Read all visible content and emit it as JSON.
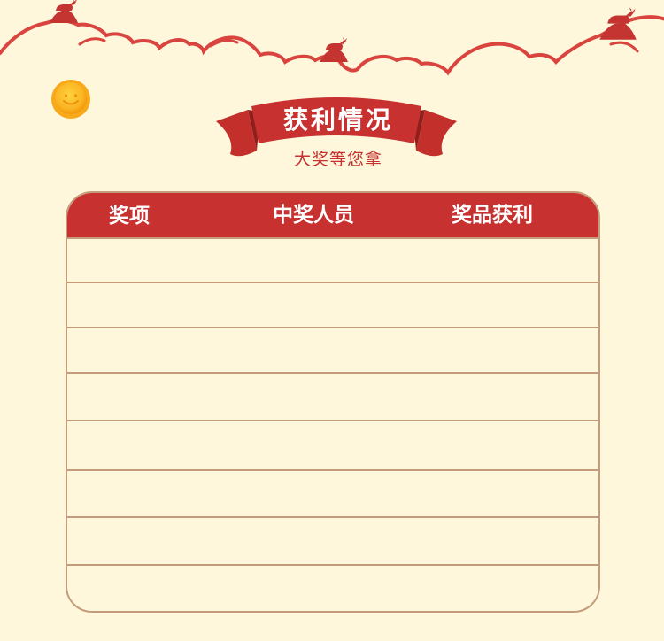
{
  "colors": {
    "background": "#fef7dc",
    "accent_red": "#c7312f",
    "cloud_red": "#d9443e",
    "coin_gold": "#f7a81b",
    "line_tan": "#c39c7c"
  },
  "decorations": {
    "clouds": "cloud-outline-icon",
    "silhouettes": "bull-silhouette-icon",
    "coin": "smiley-coin-icon",
    "ribbon": "ribbon-banner-icon"
  },
  "banner": {
    "title": "获利情况",
    "subtitle": "大奖等您拿"
  },
  "table": {
    "columns": [
      "奖项",
      "中奖人员",
      "奖品获利"
    ],
    "rows": [
      [
        "",
        "",
        ""
      ],
      [
        "",
        "",
        ""
      ],
      [
        "",
        "",
        ""
      ],
      [
        "",
        "",
        ""
      ],
      [
        "",
        "",
        ""
      ],
      [
        "",
        "",
        ""
      ],
      [
        "",
        "",
        ""
      ],
      [
        "",
        "",
        ""
      ]
    ]
  }
}
